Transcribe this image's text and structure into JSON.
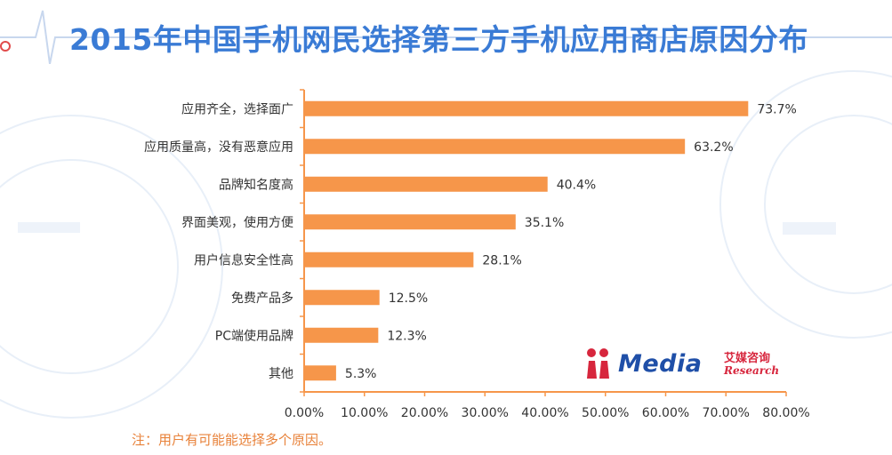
{
  "title": "2015年中国手机网民选择第三方手机应用商店原因分布",
  "note": "注：用户有可能能选择多个原因。",
  "logo": {
    "brand": "Media",
    "cn": "艾媒咨询",
    "en": "Research",
    "icon": "iimedia-logo-icon"
  },
  "colors": {
    "bar": "#f6964a",
    "axis": "#f6964a",
    "title": "#3a7bd5",
    "text": "#333333"
  },
  "chart_data": {
    "type": "bar",
    "orientation": "horizontal",
    "categories": [
      "应用齐全，选择面广",
      "应用质量高，没有恶意应用",
      "品牌知名度高",
      "界面美观，使用方便",
      "用户信息安全性高",
      "免费产品多",
      "PC端使用品牌",
      "其他"
    ],
    "values": [
      73.7,
      63.2,
      40.4,
      35.1,
      28.1,
      12.5,
      12.3,
      5.3
    ],
    "value_labels": [
      "73.7%",
      "63.2%",
      "40.4%",
      "35.1%",
      "28.1%",
      "12.5%",
      "12.3%",
      "5.3%"
    ],
    "xlim": [
      0,
      80
    ],
    "xticks": [
      "0.00%",
      "10.00%",
      "20.00%",
      "30.00%",
      "40.00%",
      "50.00%",
      "60.00%",
      "70.00%",
      "80.00%"
    ],
    "grid": false,
    "legend": "none"
  }
}
